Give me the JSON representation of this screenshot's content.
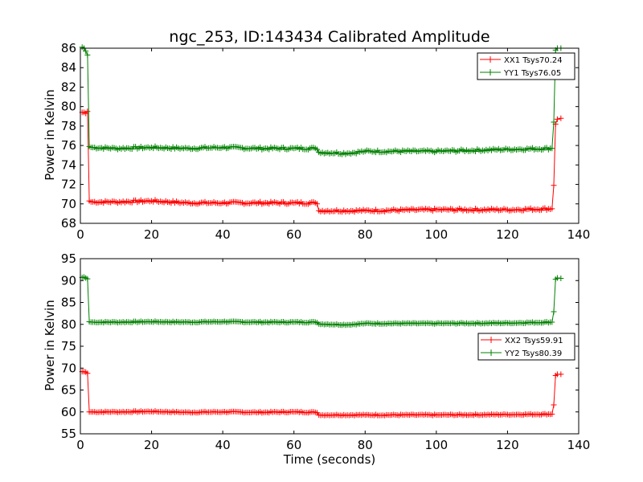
{
  "chart_data": [
    {
      "type": "line",
      "title": "ngc_253, ID:143434 Calibrated Amplitude",
      "xlabel": "",
      "ylabel": "Power in Kelvin",
      "xlim": [
        0,
        140
      ],
      "ylim": [
        68,
        86
      ],
      "xticks": [
        "0",
        "20",
        "40",
        "60",
        "80",
        "100",
        "120",
        "140"
      ],
      "yticks": [
        "68",
        "70",
        "72",
        "74",
        "76",
        "78",
        "80",
        "82",
        "84",
        "86"
      ],
      "legend_position": "top-right",
      "series": [
        {
          "name": "XX1 Tsys70.24",
          "color": "#ff0000",
          "x": [
            0.5,
            1,
            1.5,
            2,
            2.5,
            3,
            10,
            20,
            30,
            40,
            50,
            60,
            66,
            66.5,
            67,
            80,
            100,
            120,
            132.5,
            133,
            133.5,
            134,
            135
          ],
          "values": [
            79.4,
            79.4,
            79.3,
            79.5,
            70.3,
            70.2,
            70.2,
            70.3,
            70.1,
            70.1,
            70.1,
            70.1,
            70.1,
            70.0,
            69.3,
            69.3,
            69.4,
            69.4,
            69.5,
            71.9,
            78.2,
            78.7,
            78.8
          ]
        },
        {
          "name": "YY1 Tsys76.05",
          "color": "#008000",
          "x": [
            0.5,
            1,
            1.5,
            2,
            2.5,
            3,
            10,
            20,
            30,
            40,
            50,
            60,
            66,
            66.5,
            67,
            75,
            80,
            100,
            120,
            132.5,
            133,
            133.5,
            134,
            135
          ],
          "values": [
            86.1,
            86.0,
            85.7,
            85.3,
            75.9,
            75.8,
            75.7,
            75.8,
            75.7,
            75.8,
            75.7,
            75.7,
            75.7,
            75.6,
            75.3,
            75.2,
            75.4,
            75.4,
            75.6,
            75.7,
            78.4,
            85.8,
            86.0,
            86.0
          ]
        }
      ]
    },
    {
      "type": "line",
      "title": "",
      "xlabel": "Time (seconds)",
      "ylabel": "Power in Kelvin",
      "xlim": [
        0,
        140
      ],
      "ylim": [
        55,
        95
      ],
      "xticks": [
        "0",
        "20",
        "40",
        "60",
        "80",
        "100",
        "120",
        "140"
      ],
      "yticks": [
        "55",
        "60",
        "65",
        "70",
        "75",
        "80",
        "85",
        "90",
        "95"
      ],
      "legend_position": "center-right",
      "series": [
        {
          "name": "XX2 Tsys59.91",
          "color": "#ff0000",
          "x": [
            0.5,
            1,
            1.5,
            2,
            2.5,
            3,
            10,
            20,
            30,
            40,
            50,
            60,
            66,
            66.5,
            67,
            80,
            100,
            120,
            132.5,
            133,
            133.5,
            134,
            135
          ],
          "values": [
            69.2,
            69.2,
            69.1,
            68.8,
            60.0,
            60.0,
            60.0,
            60.1,
            59.9,
            60.0,
            59.9,
            60.0,
            59.9,
            59.8,
            59.3,
            59.3,
            59.3,
            59.4,
            59.5,
            61.6,
            68.3,
            68.6,
            68.6
          ]
        },
        {
          "name": "YY2 Tsys80.39",
          "color": "#008000",
          "x": [
            0.5,
            1,
            1.5,
            2,
            2.5,
            3,
            10,
            20,
            30,
            40,
            50,
            60,
            66,
            66.5,
            67,
            75,
            80,
            100,
            120,
            132.5,
            133,
            133.5,
            134,
            135
          ],
          "values": [
            90.7,
            90.8,
            90.6,
            90.4,
            80.6,
            80.5,
            80.5,
            80.6,
            80.5,
            80.6,
            80.5,
            80.5,
            80.5,
            80.4,
            80.1,
            79.9,
            80.2,
            80.2,
            80.3,
            80.5,
            82.9,
            90.3,
            90.6,
            90.5
          ]
        }
      ]
    }
  ]
}
